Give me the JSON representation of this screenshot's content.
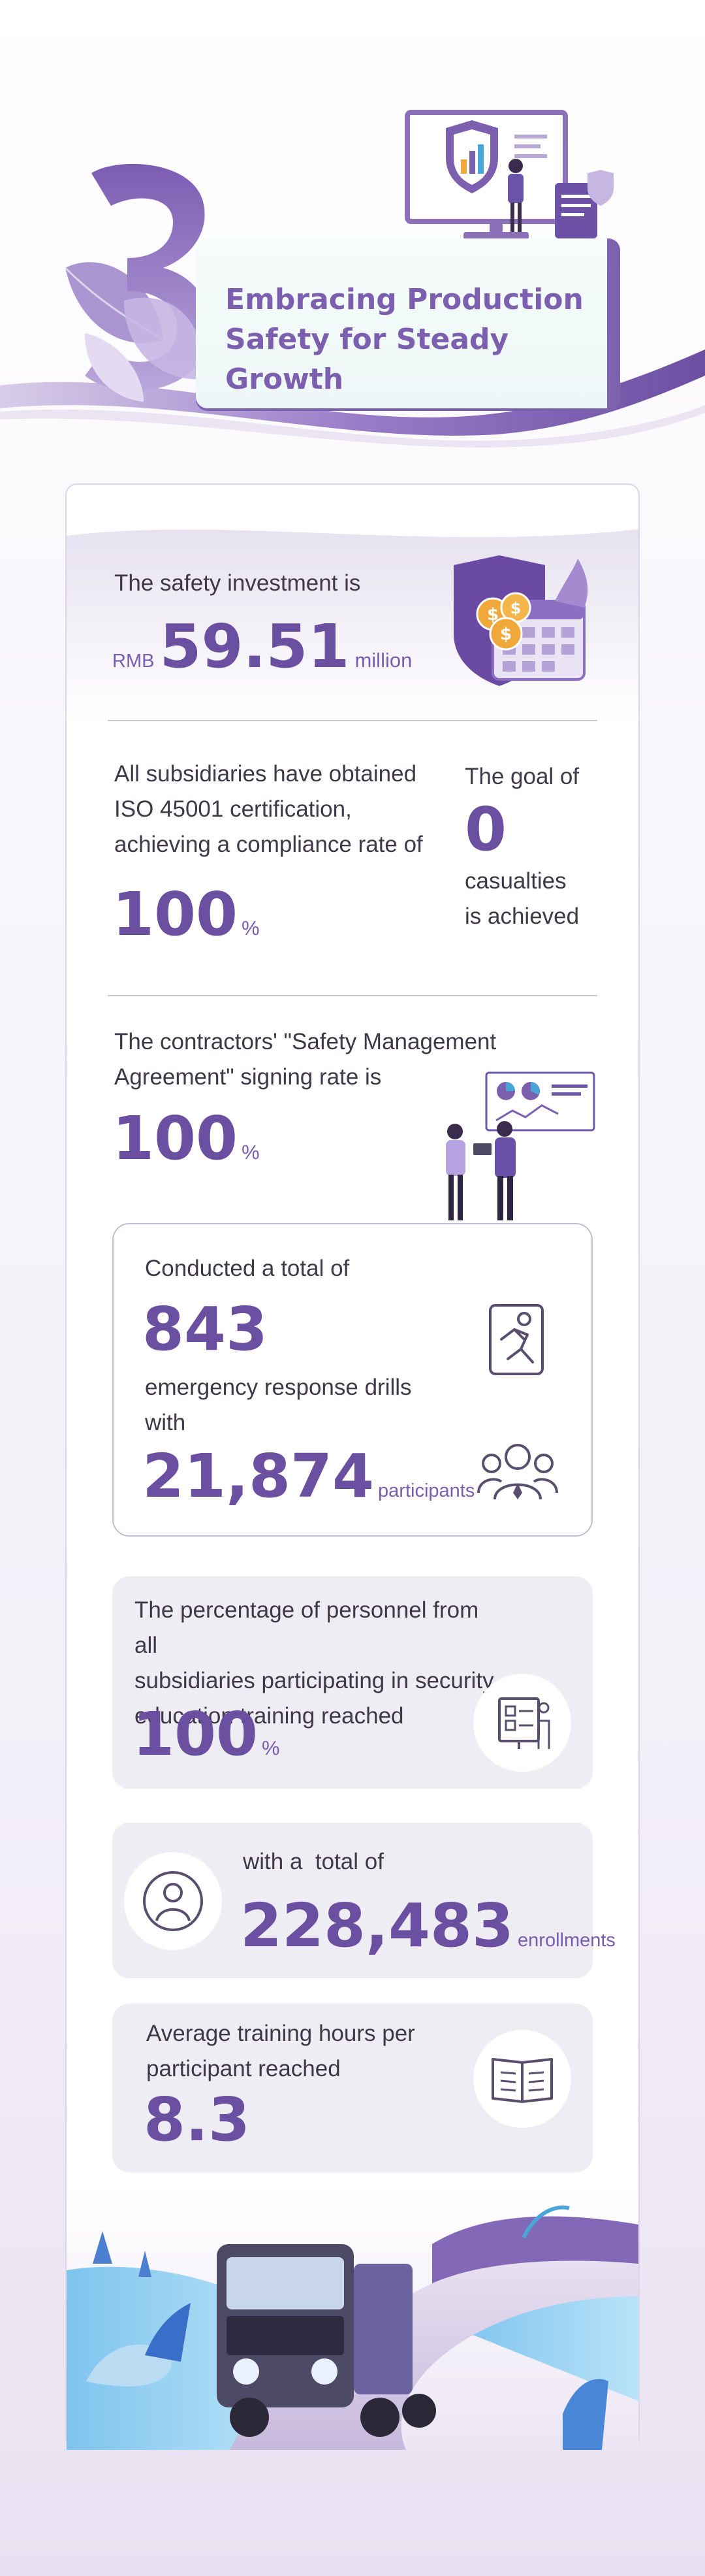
{
  "header": {
    "section_number": "3",
    "title_lines": [
      "Embracing Production",
      "Safety for Steady",
      "Growth"
    ]
  },
  "safety_investment": {
    "label": "The safety investment is",
    "prefix": "RMB",
    "value": "59.51",
    "unit": "million"
  },
  "iso": {
    "label_lines": [
      "All subsidiaries have obtained",
      "ISO 45001 certification,",
      "achieving a compliance rate of"
    ],
    "value": "100",
    "unit": "%"
  },
  "casualties": {
    "label": "The goal of",
    "value": "0",
    "caption_lines": [
      "casualties",
      "is achieved"
    ]
  },
  "contractors": {
    "label_lines": [
      "The contractors' \"Safety Management",
      "Agreement\" signing rate is"
    ],
    "value": "100",
    "unit": "%"
  },
  "drills": {
    "label": "Conducted a total of",
    "drills_value": "843",
    "middle_lines": [
      "emergency response drills",
      "with"
    ],
    "participants_value": "21,874",
    "participants_unit": "participants"
  },
  "training": {
    "label_lines": [
      "The percentage of personnel from all",
      "subsidiaries participating in security",
      "education training reached"
    ],
    "value": "100",
    "unit": "%"
  },
  "enrollments": {
    "label": "with a  total of",
    "value": "228,483",
    "unit": "enrollments"
  },
  "hours": {
    "label_lines": [
      "Average training hours per",
      "participant reached"
    ],
    "value": "8.3"
  },
  "icons": [
    "shield-chart-icon",
    "coin-calendar-icon",
    "presentation-people-icon",
    "running-person-icon",
    "group-people-icon",
    "training-board-icon",
    "user-icon",
    "open-book-icon",
    "truck-illustration"
  ],
  "colors": {
    "accent": "#6b4fa0",
    "light_accent": "#8c71b8",
    "panel": "#efedf4"
  }
}
